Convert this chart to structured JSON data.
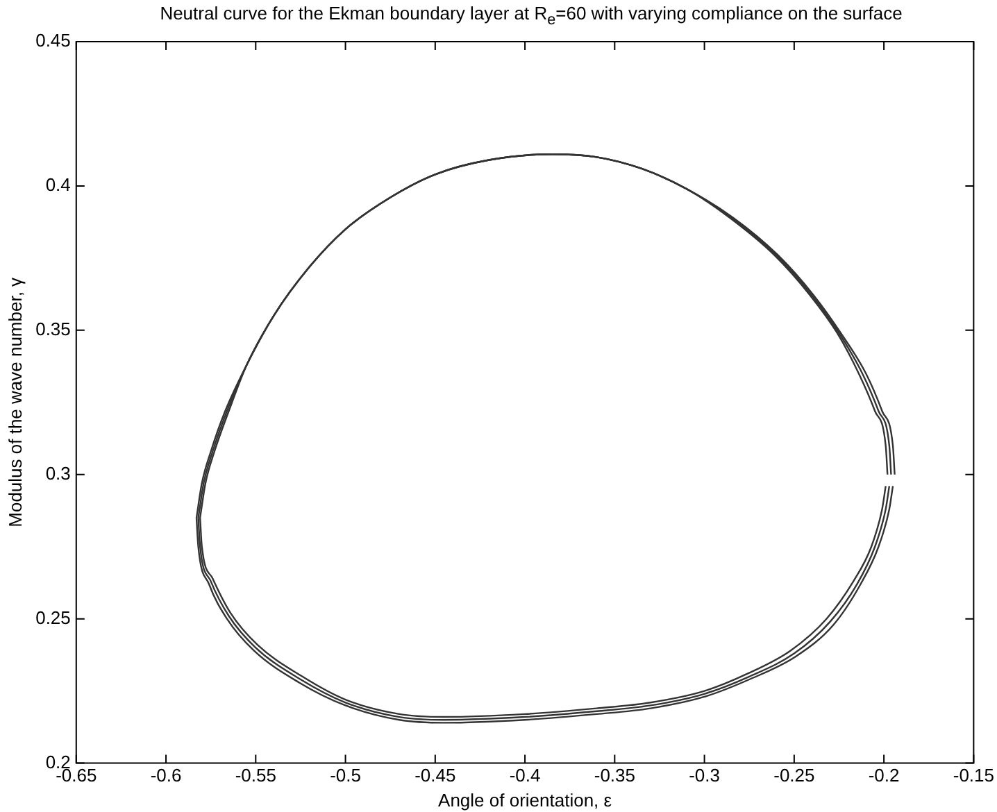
{
  "chart_data": {
    "type": "line",
    "title": "Neutral curve for the Ekman boundary layer at R$_{e}$=60 with varying compliance on the surface",
    "xlabel": "Angle of orientation, ε",
    "ylabel": "Modulus of the wave number, γ",
    "xlim": [
      -0.65,
      -0.15
    ],
    "ylim": [
      0.2,
      0.45
    ],
    "xticks": [
      -0.65,
      -0.6,
      -0.55,
      -0.5,
      -0.45,
      -0.4,
      -0.35,
      -0.3,
      -0.25,
      -0.2,
      -0.15
    ],
    "yticks": [
      0.2,
      0.25,
      0.3,
      0.35,
      0.4,
      0.45
    ],
    "grid": false,
    "legend": false,
    "marker": "none",
    "line_style": "solid",
    "series": [
      {
        "color": "#333333",
        "x": [
          -0.582,
          -0.579,
          -0.574,
          -0.566,
          -0.555,
          -0.54,
          -0.52,
          -0.5,
          -0.475,
          -0.45,
          -0.42,
          -0.385,
          -0.36,
          -0.335,
          -0.31,
          -0.285,
          -0.26,
          -0.24,
          -0.225,
          -0.212,
          -0.203,
          -0.197,
          -0.196
        ],
        "values": [
          0.285,
          0.297,
          0.308,
          0.322,
          0.338,
          0.355,
          0.372,
          0.385,
          0.396,
          0.404,
          0.409,
          0.411,
          0.41,
          0.406,
          0.399,
          0.389,
          0.376,
          0.362,
          0.349,
          0.335,
          0.322,
          0.31,
          0.3
        ]
      },
      {
        "color": "#333333",
        "x": [
          -0.582,
          -0.581,
          -0.575,
          -0.565,
          -0.55,
          -0.525,
          -0.5,
          -0.47,
          -0.445,
          -0.4,
          -0.36,
          -0.33,
          -0.3,
          -0.275,
          -0.25,
          -0.23,
          -0.215,
          -0.205,
          -0.199,
          -0.197
        ],
        "values": [
          0.285,
          0.275,
          0.263,
          0.251,
          0.24,
          0.229,
          0.221,
          0.216,
          0.215,
          0.216,
          0.218,
          0.22,
          0.224,
          0.23,
          0.238,
          0.249,
          0.262,
          0.275,
          0.288,
          0.296
        ]
      },
      {
        "color": "#333333",
        "x": [
          -0.583,
          -0.58,
          -0.575,
          -0.567,
          -0.555,
          -0.54,
          -0.52,
          -0.5,
          -0.475,
          -0.45,
          -0.42,
          -0.385,
          -0.36,
          -0.335,
          -0.31,
          -0.284,
          -0.259,
          -0.239,
          -0.224,
          -0.21,
          -0.201,
          -0.195,
          -0.194
        ],
        "values": [
          0.285,
          0.297,
          0.308,
          0.322,
          0.338,
          0.355,
          0.372,
          0.385,
          0.396,
          0.404,
          0.409,
          0.411,
          0.41,
          0.406,
          0.399,
          0.389,
          0.376,
          0.362,
          0.349,
          0.335,
          0.322,
          0.31,
          0.3
        ]
      },
      {
        "color": "#333333",
        "x": [
          -0.583,
          -0.582,
          -0.576,
          -0.566,
          -0.551,
          -0.526,
          -0.5,
          -0.47,
          -0.445,
          -0.4,
          -0.36,
          -0.33,
          -0.3,
          -0.275,
          -0.249,
          -0.228,
          -0.213,
          -0.203,
          -0.197,
          -0.195
        ],
        "values": [
          0.285,
          0.275,
          0.262,
          0.25,
          0.239,
          0.228,
          0.22,
          0.215,
          0.214,
          0.215,
          0.217,
          0.219,
          0.223,
          0.229,
          0.237,
          0.248,
          0.262,
          0.275,
          0.288,
          0.296
        ]
      },
      {
        "color": "#333333",
        "x": [
          -0.581,
          -0.578,
          -0.573,
          -0.565,
          -0.555,
          -0.54,
          -0.52,
          -0.5,
          -0.475,
          -0.45,
          -0.42,
          -0.385,
          -0.36,
          -0.335,
          -0.31,
          -0.286,
          -0.261,
          -0.241,
          -0.226,
          -0.214,
          -0.205,
          -0.199,
          -0.198
        ],
        "values": [
          0.285,
          0.297,
          0.308,
          0.322,
          0.338,
          0.355,
          0.372,
          0.385,
          0.396,
          0.404,
          0.409,
          0.411,
          0.41,
          0.406,
          0.399,
          0.389,
          0.376,
          0.362,
          0.349,
          0.335,
          0.322,
          0.31,
          0.3
        ]
      },
      {
        "color": "#333333",
        "x": [
          -0.581,
          -0.58,
          -0.574,
          -0.564,
          -0.549,
          -0.524,
          -0.5,
          -0.47,
          -0.445,
          -0.4,
          -0.36,
          -0.33,
          -0.3,
          -0.276,
          -0.252,
          -0.232,
          -0.217,
          -0.207,
          -0.201,
          -0.199
        ],
        "values": [
          0.285,
          0.275,
          0.264,
          0.252,
          0.241,
          0.23,
          0.222,
          0.217,
          0.216,
          0.217,
          0.219,
          0.221,
          0.225,
          0.231,
          0.239,
          0.25,
          0.263,
          0.275,
          0.288,
          0.296
        ]
      }
    ]
  }
}
